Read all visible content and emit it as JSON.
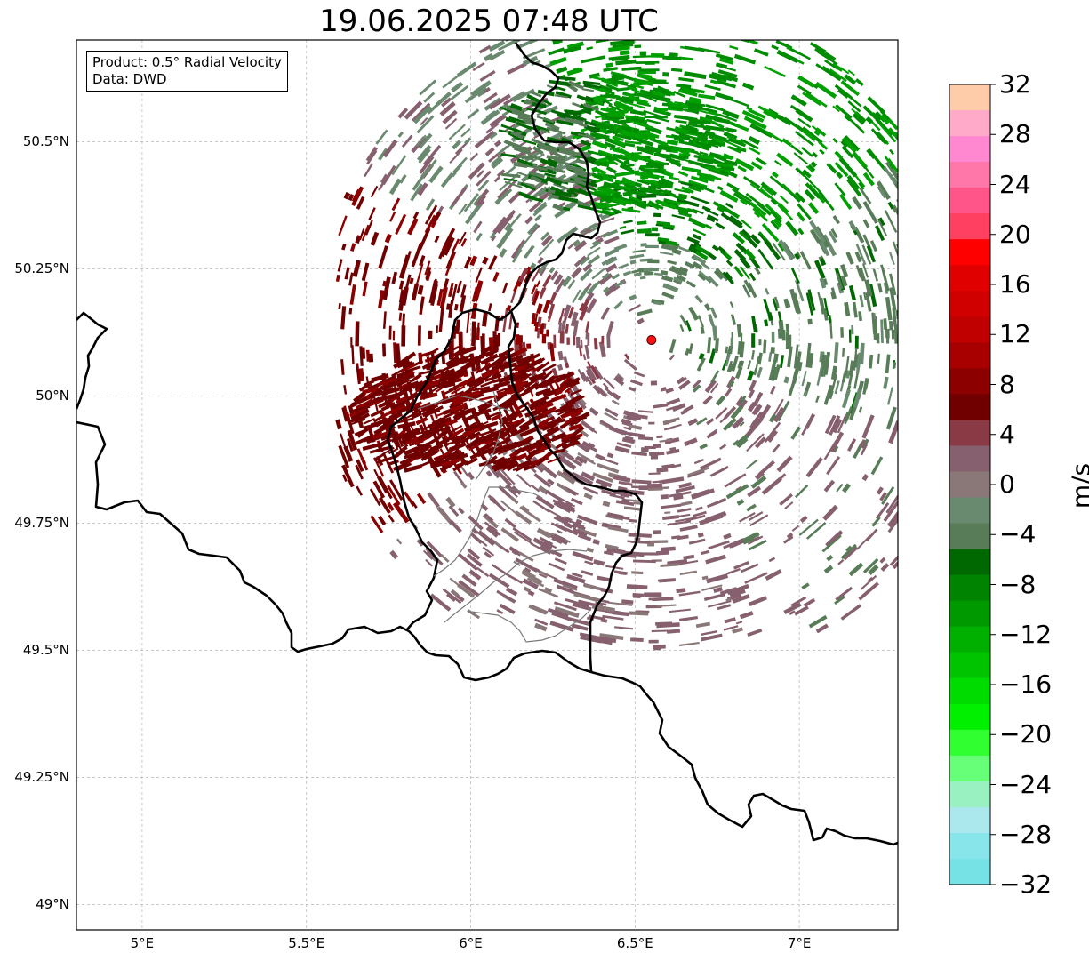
{
  "title": "19.06.2025 07:48 UTC",
  "info_box": {
    "product": "Product: 0.5° Radial Velocity",
    "data": "Data: DWD"
  },
  "map": {
    "lon_range": [
      4.8,
      7.3
    ],
    "lat_range": [
      48.95,
      50.7
    ],
    "lat_ticks": [
      {
        "value": 50.5,
        "label": "50.5°N"
      },
      {
        "value": 50.25,
        "label": "50.25°N"
      },
      {
        "value": 50.0,
        "label": "50°N"
      },
      {
        "value": 49.75,
        "label": "49.75°N"
      },
      {
        "value": 49.5,
        "label": "49.5°N"
      },
      {
        "value": 49.25,
        "label": "49.25°N"
      },
      {
        "value": 49.0,
        "label": "49°N"
      }
    ],
    "lon_ticks": [
      {
        "value": 5.0,
        "label": "5°E"
      },
      {
        "value": 5.5,
        "label": "5.5°E"
      },
      {
        "value": 6.0,
        "label": "6°E"
      },
      {
        "value": 6.5,
        "label": "6.5°E"
      },
      {
        "value": 7.0,
        "label": "7°E"
      }
    ],
    "grid": "dashed",
    "radar_site": {
      "lon": 6.55,
      "lat": 50.11,
      "color": "#ff1010"
    },
    "borders_color": "#000000",
    "admin_color": "#808080"
  },
  "colorbar": {
    "label": "m/s",
    "range": [
      -32,
      32
    ],
    "ticks": [
      "32",
      "28",
      "24",
      "20",
      "16",
      "12",
      "8",
      "4",
      "0",
      "−4",
      "−8",
      "−12",
      "−16",
      "−20",
      "−24",
      "−28",
      "−32"
    ],
    "colors_top_to_bottom": [
      "#ffccaa",
      "#ffaac8",
      "#ff88d0",
      "#ff77a8",
      "#ff5588",
      "#ff4060",
      "#ff0000",
      "#e00000",
      "#d00000",
      "#c00000",
      "#a80000",
      "#8c0000",
      "#700000",
      "#8a3a44",
      "#86606e",
      "#8a7878",
      "#6a8a70",
      "#587c58",
      "#006800",
      "#008400",
      "#009a00",
      "#00b000",
      "#00c400",
      "#00dc00",
      "#00f000",
      "#30ff30",
      "#66ff77",
      "#99f0c0",
      "#aae8ee",
      "#88e6ea",
      "#77e2e6"
    ]
  },
  "legend_text": {
    "inbound": "green",
    "outbound": "red"
  }
}
